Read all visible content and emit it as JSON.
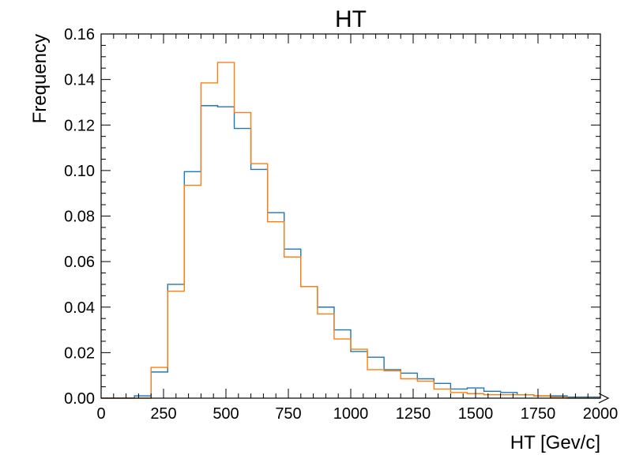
{
  "chart_data": {
    "type": "histogram",
    "title": "HT",
    "xlabel": "HT [Gev/c]",
    "ylabel": "Frequency",
    "xlim": [
      0,
      2000
    ],
    "ylim": [
      0,
      0.16
    ],
    "x_ticks": [
      0,
      250,
      500,
      750,
      1000,
      1250,
      1500,
      1750,
      2000
    ],
    "x_tick_labels": [
      "0",
      "250",
      "500",
      "750",
      "1000",
      "1250",
      "1500",
      "1750",
      "2000"
    ],
    "y_ticks": [
      0.0,
      0.02,
      0.04,
      0.06,
      0.08,
      0.1,
      0.12,
      0.14,
      0.16
    ],
    "y_tick_labels": [
      "0.00",
      "0.02",
      "0.04",
      "0.06",
      "0.08",
      "0.10",
      "0.12",
      "0.14",
      "0.16"
    ],
    "grid": false,
    "legend": "none",
    "bin_edges": [
      0,
      66.67,
      133.33,
      200,
      266.67,
      333.33,
      400,
      466.67,
      533.33,
      600,
      666.67,
      733.33,
      800,
      866.67,
      933.33,
      1000,
      1066.67,
      1133.33,
      1200,
      1266.67,
      1333.33,
      1400,
      1466.67,
      1533.33,
      1600,
      1666.67,
      1733.33,
      1800,
      1866.67,
      1933.33,
      2000
    ],
    "series": [
      {
        "color": "#1f77b4",
        "values": [
          0.0,
          0.0,
          0.001,
          0.0115,
          0.05,
          0.0995,
          0.1285,
          0.128,
          0.1185,
          0.1005,
          0.0815,
          0.0655,
          0.049,
          0.04,
          0.03,
          0.0205,
          0.018,
          0.0125,
          0.011,
          0.0085,
          0.0065,
          0.004,
          0.0045,
          0.003,
          0.0025,
          0.0015,
          0.001,
          0.001,
          0.0005,
          0.0005
        ]
      },
      {
        "color": "#ff7f0e",
        "values": [
          0.0,
          0.0,
          0.0,
          0.0135,
          0.047,
          0.0935,
          0.1385,
          0.1475,
          0.1255,
          0.103,
          0.0775,
          0.062,
          0.049,
          0.037,
          0.026,
          0.0215,
          0.0125,
          0.012,
          0.0085,
          0.0075,
          0.004,
          0.0025,
          0.002,
          0.0015,
          0.0015,
          0.0015,
          0.001,
          0.0005,
          0.0,
          0.0
        ]
      }
    ]
  }
}
